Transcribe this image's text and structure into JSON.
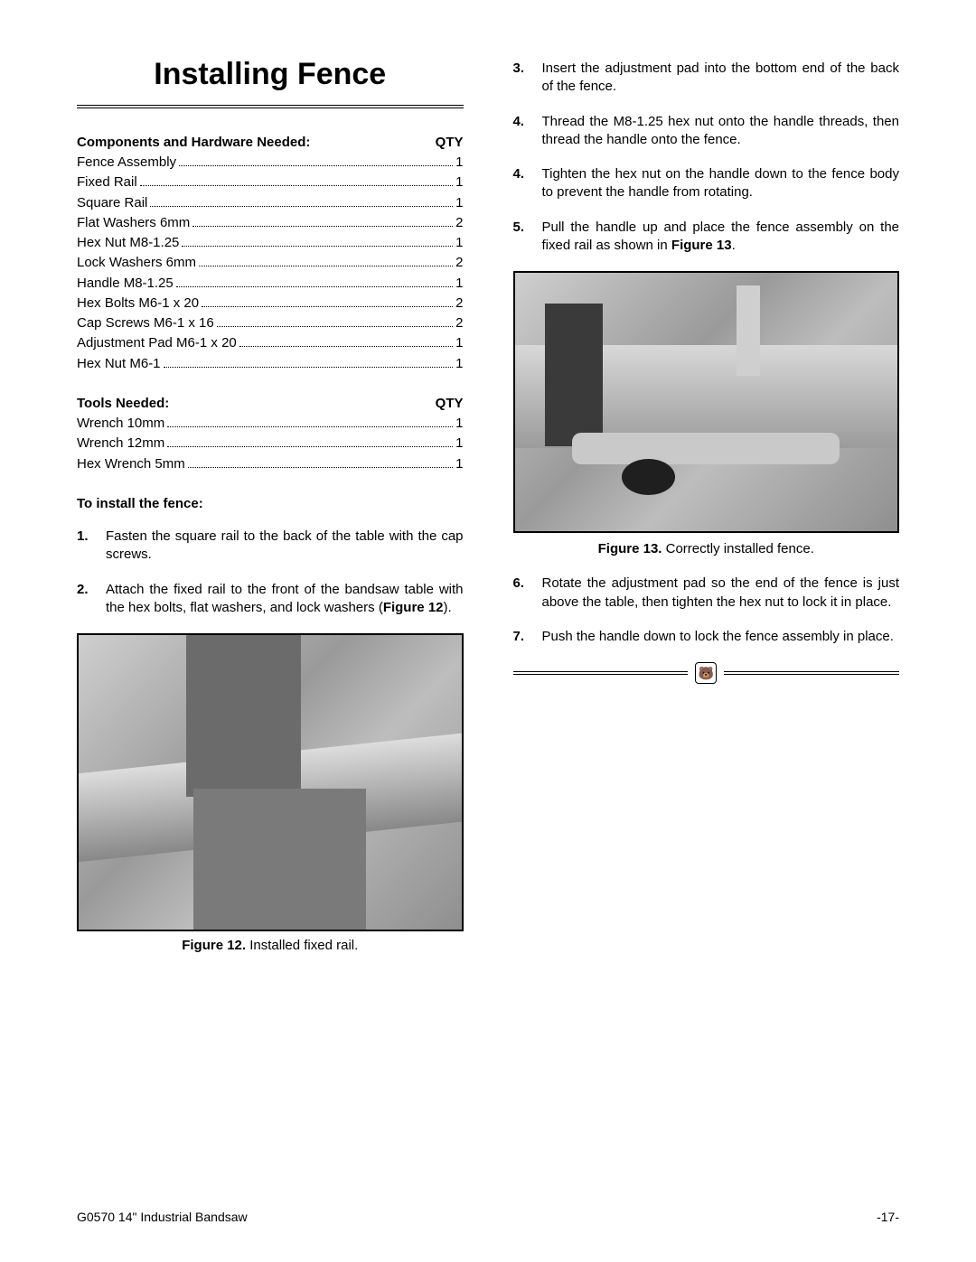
{
  "title": "Installing Fence",
  "components": {
    "header_label": "Components and Hardware Needed:",
    "header_qty": "QTY",
    "items": [
      {
        "label": "Fence Assembly",
        "qty": "1"
      },
      {
        "label": "Fixed Rail",
        "qty": "1"
      },
      {
        "label": "Square Rail",
        "qty": "1"
      },
      {
        "label": "Flat Washers 6mm",
        "qty": "2"
      },
      {
        "label": "Hex Nut M8-1.25",
        "qty": "1"
      },
      {
        "label": "Lock Washers 6mm",
        "qty": "2"
      },
      {
        "label": "Handle M8-1.25",
        "qty": "1"
      },
      {
        "label": "Hex Bolts M6-1 x 20",
        "qty": "2"
      },
      {
        "label": "Cap Screws M6-1 x 16",
        "qty": "2"
      },
      {
        "label": "Adjustment Pad M6-1 x 20",
        "qty": "1"
      },
      {
        "label": "Hex Nut M6-1",
        "qty": "1"
      }
    ]
  },
  "tools": {
    "header_label": "Tools Needed:",
    "header_qty": "QTY",
    "items": [
      {
        "label": "Wrench 10mm",
        "qty": "1"
      },
      {
        "label": "Wrench 12mm",
        "qty": "1"
      },
      {
        "label": "Hex Wrench 5mm",
        "qty": "1"
      }
    ]
  },
  "install_heading": "To install the fence:",
  "steps_left": [
    {
      "num": "1.",
      "txt": "Fasten the square rail to the back of the table with the cap screws."
    },
    {
      "num": "2.",
      "txt_pre": "Attach the fixed rail to the front of the bandsaw table with the hex bolts, flat washers, and lock washers (",
      "bold": "Figure 12",
      "txt_post": ")."
    }
  ],
  "figure12": {
    "label": "Figure 12.",
    "caption": " Installed fixed rail."
  },
  "steps_right_a": [
    {
      "num": "3.",
      "txt": "Insert the adjustment pad into the bottom end of the back of the fence."
    },
    {
      "num": "4.",
      "txt": "Thread the M8-1.25 hex nut onto the handle threads, then thread the handle onto the fence."
    },
    {
      "num": "4.",
      "txt": "Tighten the hex nut on the handle down to the fence body to prevent the handle from rotating."
    },
    {
      "num": "5.",
      "txt_pre": "Pull the handle up and place the fence assembly on the fixed rail as shown in ",
      "bold": "Figure 13",
      "txt_post": "."
    }
  ],
  "figure13": {
    "label": "Figure 13.",
    "caption": " Correctly installed fence."
  },
  "steps_right_b": [
    {
      "num": "6.",
      "txt": "Rotate the adjustment pad so the end of the fence is just above the table, then tighten the hex nut to lock it in place."
    },
    {
      "num": "7.",
      "txt": "Push the handle down to lock the fence assembly in place."
    }
  ],
  "footer": {
    "left": "G0570 14\" Industrial Bandsaw",
    "right": "-17-"
  }
}
